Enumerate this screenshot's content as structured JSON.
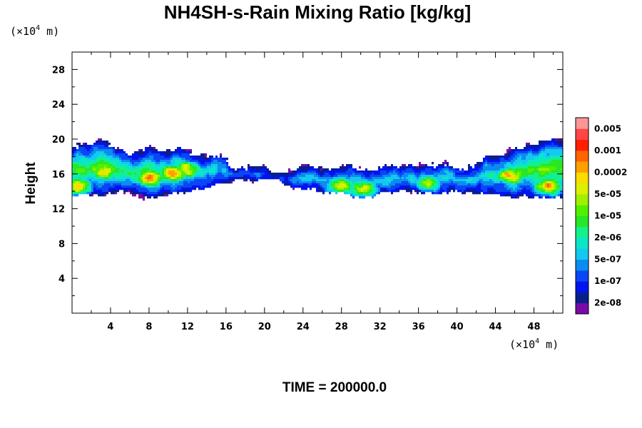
{
  "chart_data": {
    "type": "heatmap",
    "title": "NH4SH-s-Rain Mixing Ratio [kg/kg]",
    "ylabel": "Height",
    "x_unit": {
      "prefix": "(×10",
      "exponent": "4",
      "suffix": " m)"
    },
    "y_unit": {
      "prefix": "(×10",
      "exponent": "4",
      "suffix": " m)"
    },
    "xlim": [
      0,
      51
    ],
    "ylim": [
      0,
      30
    ],
    "x_ticks": [
      4,
      8,
      12,
      16,
      20,
      24,
      28,
      32,
      36,
      40,
      44,
      48
    ],
    "y_ticks": [
      4,
      8,
      12,
      16,
      20,
      24,
      28
    ],
    "x_tick_labels": [
      "4",
      "8",
      "12",
      "16",
      "20",
      "24",
      "28",
      "32",
      "36",
      "40",
      "44",
      "48"
    ],
    "y_tick_labels": [
      "4",
      "8",
      "12",
      "16",
      "20",
      "24",
      "28"
    ],
    "time_label": "TIME = 200000.0",
    "colorbar": {
      "colors": [
        "#7a0aa8",
        "#0a1e8c",
        "#0014f0",
        "#0a46f5",
        "#0a8cf0",
        "#14c8f0",
        "#0ae6c8",
        "#14f08c",
        "#28e628",
        "#50f000",
        "#a0f000",
        "#dcf000",
        "#fadc00",
        "#ffa000",
        "#ff6400",
        "#ff1e00",
        "#ff4646",
        "#ff9696"
      ],
      "labels": [
        "2e-08",
        "1e-07",
        "5e-07",
        "2e-06",
        "1e-05",
        "5e-05",
        "0.0002",
        "0.001",
        "0.005"
      ]
    },
    "field": {
      "description_levels": "color index 0..17 per colorbar",
      "cloud_base_profile": {
        "x": [
          0,
          1,
          2,
          3,
          4,
          5,
          6,
          7,
          8,
          9,
          10,
          11,
          12,
          13,
          14,
          15,
          16,
          17,
          18,
          19,
          20,
          21,
          22,
          23,
          24,
          25,
          26,
          27,
          28,
          29,
          30,
          31,
          32,
          33,
          34,
          35,
          36,
          37,
          38,
          39,
          40,
          41,
          42,
          43,
          44,
          45,
          46,
          47,
          48,
          49,
          50,
          51
        ],
        "bottom": [
          13.5,
          13.5,
          13.6,
          13.5,
          13.8,
          14.0,
          13.8,
          13.4,
          13.2,
          13.5,
          13.7,
          13.8,
          13.9,
          14.2,
          14.5,
          14.8,
          15.0,
          15.3,
          15.4,
          15.0,
          15.2,
          15.5,
          14.8,
          14.4,
          14.1,
          14.2,
          14.0,
          13.9,
          13.8,
          13.6,
          13.2,
          13.4,
          13.7,
          13.8,
          14.2,
          14.0,
          13.7,
          13.8,
          13.7,
          13.8,
          13.9,
          13.7,
          13.9,
          13.8,
          13.6,
          13.4,
          13.2,
          13.5,
          13.3,
          13.4,
          13.3,
          13.3
        ],
        "top": [
          19.2,
          19.4,
          19.6,
          19.9,
          19.4,
          18.8,
          18.2,
          18.6,
          19.0,
          18.8,
          18.6,
          19.0,
          18.7,
          18.1,
          18.0,
          18.3,
          17.8,
          16.5,
          16.8,
          17.0,
          16.8,
          16.0,
          15.9,
          16.5,
          17.0,
          16.8,
          16.6,
          16.4,
          16.7,
          17.1,
          16.6,
          16.2,
          16.8,
          17.0,
          16.9,
          17.0,
          16.9,
          17.0,
          17.1,
          17.4,
          16.7,
          16.8,
          17.1,
          18.1,
          18.0,
          18.2,
          19.0,
          19.3,
          19.5,
          19.8,
          19.9,
          19.9
        ]
      },
      "cores": [
        {
          "x": 0.6,
          "y": 14.6,
          "peak": 13
        },
        {
          "x": 3.3,
          "y": 16.2,
          "peak": 12
        },
        {
          "x": 8.0,
          "y": 15.5,
          "peak": 14
        },
        {
          "x": 10.5,
          "y": 16.0,
          "peak": 14
        },
        {
          "x": 12.0,
          "y": 16.5,
          "peak": 12
        },
        {
          "x": 28.0,
          "y": 14.6,
          "peak": 11
        },
        {
          "x": 30.2,
          "y": 14.3,
          "peak": 11
        },
        {
          "x": 37.0,
          "y": 15.0,
          "peak": 10
        },
        {
          "x": 45.5,
          "y": 15.8,
          "peak": 13
        },
        {
          "x": 49.5,
          "y": 14.6,
          "peak": 13
        }
      ]
    }
  }
}
